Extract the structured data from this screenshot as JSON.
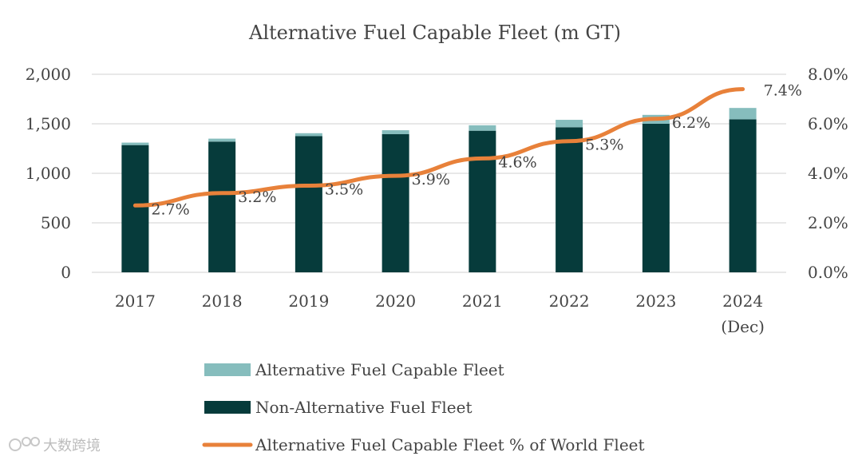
{
  "chart_data": {
    "type": "bar",
    "title": "Alternative Fuel Capable Fleet (m GT)",
    "categories": [
      "2017",
      "2018",
      "2019",
      "2020",
      "2021",
      "2022",
      "2023",
      "2024\n(Dec)"
    ],
    "series": [
      {
        "name": "Non-Alternative Fuel Fleet",
        "kind": "bar",
        "axis": "left",
        "color": "#063b3b",
        "values": [
          1285,
          1320,
          1375,
          1395,
          1430,
          1465,
          1500,
          1545
        ]
      },
      {
        "name": "Alternative Fuel Capable Fleet",
        "kind": "bar",
        "axis": "left",
        "color": "#86bdbd",
        "values": [
          25,
          30,
          30,
          40,
          55,
          75,
          90,
          115
        ]
      },
      {
        "name": "Alternative Fuel Capable Fleet % of World Fleet",
        "kind": "line",
        "axis": "right",
        "color": "#e8813a",
        "values": [
          2.7,
          3.2,
          3.5,
          3.9,
          4.6,
          5.3,
          6.2,
          7.4
        ],
        "labels": [
          "2.7%",
          "3.2%",
          "3.5%",
          "3.9%",
          "4.6%",
          "5.3%",
          "6.2%",
          "7.4%"
        ]
      }
    ],
    "y_left": {
      "min": 0,
      "max": 2000,
      "ticks": [
        0,
        500,
        1000,
        1500,
        2000
      ],
      "tick_labels": [
        "0",
        "500",
        "1,000",
        "1,500",
        "2,000"
      ]
    },
    "y_right": {
      "min": 0,
      "max": 8,
      "ticks": [
        0,
        2,
        4,
        6,
        8
      ],
      "tick_labels": [
        "0.0%",
        "2.0%",
        "4.0%",
        "6.0%",
        "8.0%"
      ]
    },
    "grid": true,
    "legend_position": "bottom",
    "legend_order": [
      "Alternative Fuel Capable Fleet",
      "Non-Alternative Fuel Fleet",
      "Alternative Fuel Capable Fleet % of World Fleet"
    ]
  },
  "watermark": "大数跨境"
}
